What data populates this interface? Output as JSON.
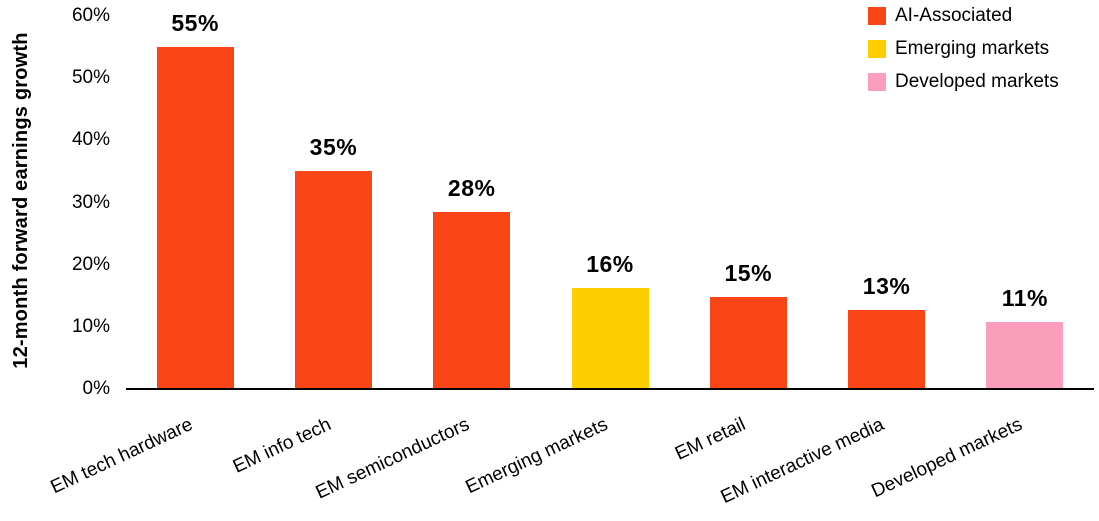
{
  "chart_data": {
    "type": "bar",
    "title": "",
    "xlabel": "",
    "ylabel": "12-month forward earnings growth",
    "ylim": [
      0,
      60
    ],
    "grid": false,
    "legend_position": "top-right",
    "background_color": "#ffffff",
    "axis_color": "#000000",
    "text_color": "#000000",
    "yticks": [
      {
        "value": 0,
        "label": "0%"
      },
      {
        "value": 10,
        "label": "10%"
      },
      {
        "value": 20,
        "label": "20%"
      },
      {
        "value": 30,
        "label": "30%"
      },
      {
        "value": 40,
        "label": "40%"
      },
      {
        "value": 50,
        "label": "50%"
      },
      {
        "value": 60,
        "label": "60%"
      }
    ],
    "categories": [
      "EM tech hardware",
      "EM info tech",
      "EM semiconductors",
      "Emerging markets",
      "EM retail",
      "EM interactive media",
      "Developed markets"
    ],
    "bars": [
      {
        "category": "EM tech hardware",
        "value": 55.0,
        "label": "55%",
        "series": "AI-Associated"
      },
      {
        "category": "EM info tech",
        "value": 35.0,
        "label": "35%",
        "series": "AI-Associated"
      },
      {
        "category": "EM semiconductors",
        "value": 28.5,
        "label": "28%",
        "series": "AI-Associated"
      },
      {
        "category": "Emerging markets",
        "value": 16.3,
        "label": "16%",
        "series": "Emerging markets"
      },
      {
        "category": "EM retail",
        "value": 14.8,
        "label": "15%",
        "series": "AI-Associated"
      },
      {
        "category": "EM interactive media",
        "value": 12.7,
        "label": "13%",
        "series": "AI-Associated"
      },
      {
        "category": "Developed markets",
        "value": 10.8,
        "label": "11%",
        "series": "Developed markets"
      }
    ],
    "legend": [
      {
        "label": "AI-Associated",
        "color": "#FA4616"
      },
      {
        "label": "Emerging markets",
        "color": "#FFCD00"
      },
      {
        "label": "Developed markets",
        "color": "#FA9EBB"
      }
    ]
  }
}
